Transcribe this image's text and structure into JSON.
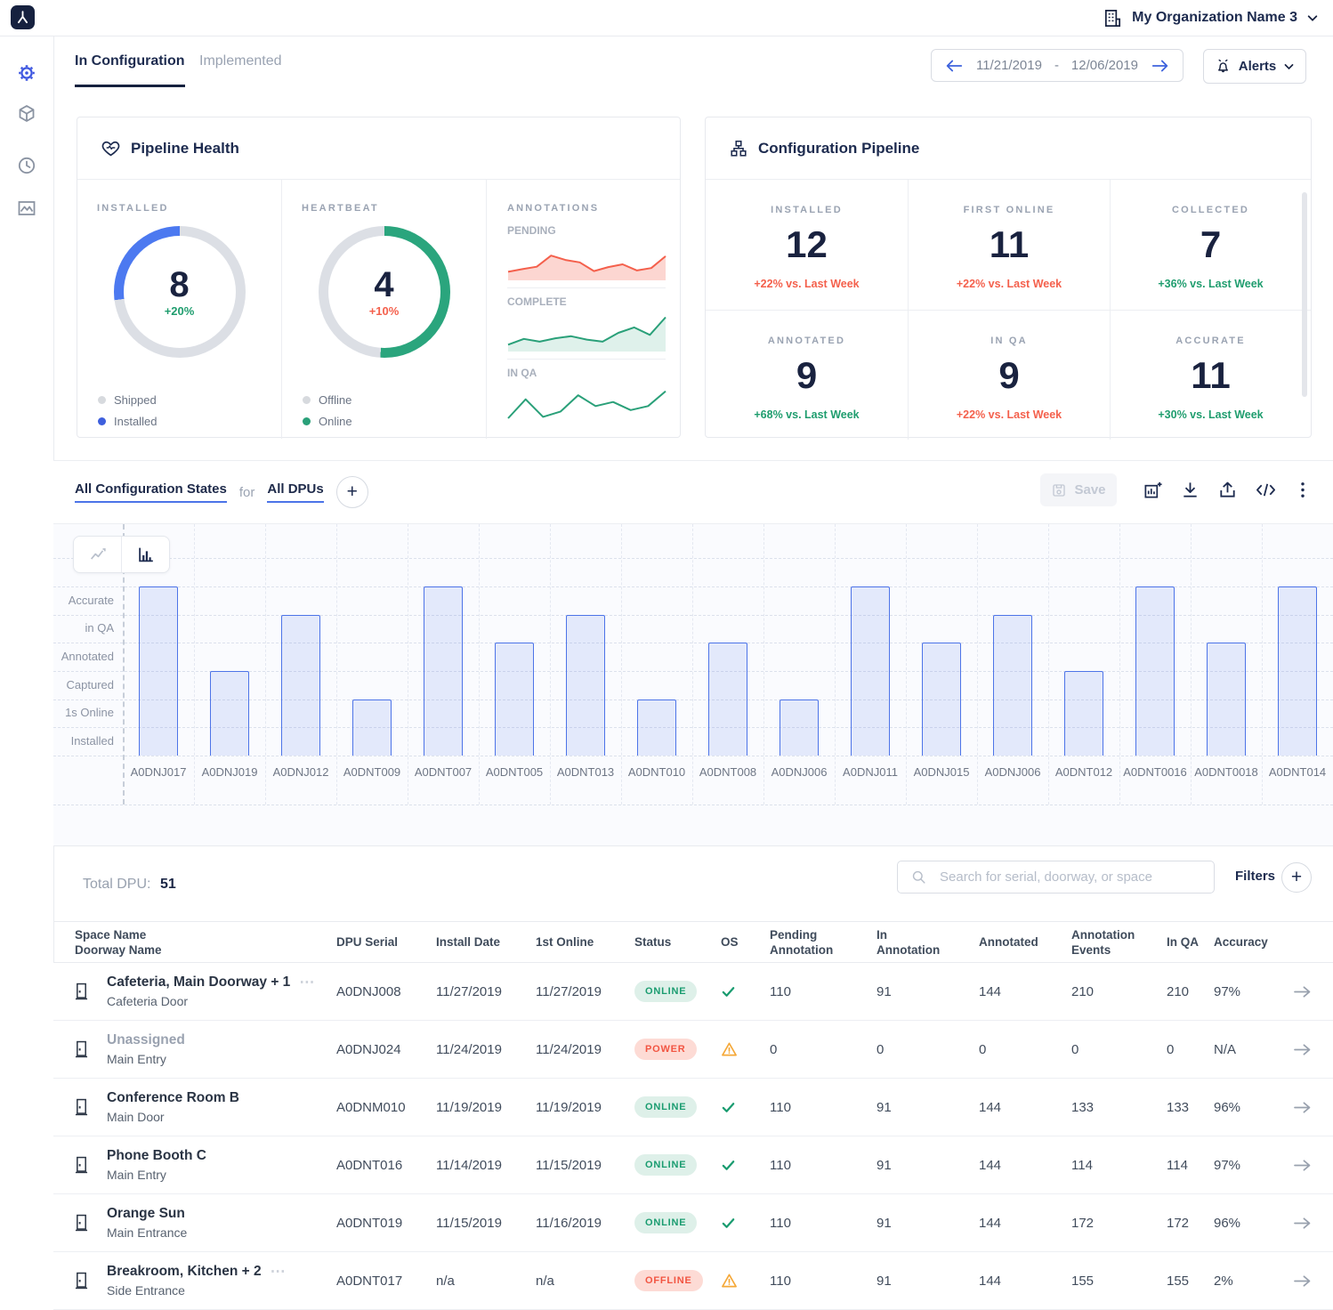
{
  "app": {
    "org_name": "My Organization Name 3"
  },
  "icons": {
    "plus": "+",
    "more": "⋯"
  },
  "tabs": [
    {
      "label": "In Configuration",
      "active": true
    },
    {
      "label": "Implemented",
      "active": false
    }
  ],
  "header": {
    "date_start": "11/21/2019",
    "date_separator": "-",
    "date_end": "12/06/2019",
    "alerts_label": "Alerts"
  },
  "pipeline_health": {
    "title": "Pipeline Health",
    "installed": {
      "label": "INSTALLED",
      "value": "8",
      "delta": "+20%",
      "delta_color": "green",
      "legend": [
        {
          "label": "Shipped",
          "color": "#d7dade"
        },
        {
          "label": "Installed",
          "color": "#3e5fdd"
        }
      ]
    },
    "heartbeat": {
      "label": "HEARTBEAT",
      "value": "4",
      "delta": "+10%",
      "delta_color": "red",
      "legend": [
        {
          "label": "Offline",
          "color": "#d7dade"
        },
        {
          "label": "Online",
          "color": "#2aa079"
        }
      ]
    },
    "annotations": {
      "label": "ANNOTATIONS",
      "series": [
        {
          "label": "PENDING",
          "color": "#f4604c",
          "fill": "rgba(244,96,76,0.26)",
          "values": [
            2,
            2.8,
            3.5,
            6.8,
            5.5,
            4.8,
            2.2,
            3.4,
            4.2,
            2.4,
            3.1,
            6.6
          ]
        },
        {
          "label": "COMPLETE",
          "color": "#2aa079",
          "fill": "rgba(42,160,121,0.15)",
          "values": [
            1.5,
            3.2,
            2.4,
            3.4,
            4.0,
            3.0,
            2.4,
            5.0,
            6.6,
            4.4,
            9.6
          ]
        },
        {
          "label": "IN QA",
          "color": "#2aa079",
          "fill": null,
          "values": [
            0.8,
            6.4,
            1.2,
            2.8,
            7.6,
            4.4,
            5.6,
            3.2,
            4.4,
            8.8
          ]
        }
      ]
    }
  },
  "configuration_pipeline": {
    "title": "Configuration Pipeline",
    "metrics": [
      {
        "label": "INSTALLED",
        "value": "12",
        "delta": "+22% vs. Last Week",
        "color": "red"
      },
      {
        "label": "FIRST ONLINE",
        "value": "11",
        "delta": "+22% vs. Last Week",
        "color": "red"
      },
      {
        "label": "COLLECTED",
        "value": "7",
        "delta": "+36% vs. Last Week",
        "color": "green"
      },
      {
        "label": "ANNOTATED",
        "value": "9",
        "delta": "+68% vs. Last Week",
        "color": "green"
      },
      {
        "label": "IN QA",
        "value": "9",
        "delta": "+22% vs. Last Week",
        "color": "red"
      },
      {
        "label": "ACCURATE",
        "value": "11",
        "delta": "+30% vs. Last Week",
        "color": "green"
      }
    ]
  },
  "chart": {
    "filter_states": "All Configuration States",
    "for_label": "for",
    "filter_dpus": "All DPUs",
    "save_label": "Save",
    "y_labels": [
      "Accurate",
      "in QA",
      "Annotated",
      "Captured",
      "1s Online",
      "Installed"
    ],
    "chart_data": {
      "type": "bar",
      "title": "All Configuration States for All DPUs",
      "categories": [
        "A0DNJ017",
        "A0DNJ019",
        "A0DNJ012",
        "A0DNT009",
        "A0DNT007",
        "A0DNT005",
        "A0DNT013",
        "A0DNT010",
        "A0DNT008",
        "A0DNJ006",
        "A0DNJ011",
        "A0DNJ015",
        "A0DNJ006",
        "A0DNT012",
        "A0DNT0016",
        "A0DNT0018",
        "A0DNT014"
      ],
      "values": [
        6,
        3,
        5,
        2,
        6,
        4,
        5,
        2,
        4,
        2,
        6,
        4,
        5,
        3,
        6,
        4,
        6
      ],
      "y_bands_bottom_to_top": [
        "Installed",
        "1s Online",
        "Captured",
        "Annotated",
        "in QA",
        "Accurate"
      ],
      "ylim": [
        0,
        6
      ],
      "grid": "dashed"
    }
  },
  "table": {
    "total_label": "Total DPU:",
    "total_value": "51",
    "search_placeholder": "Search for serial, doorway, or space",
    "filters_label": "Filters",
    "headers": [
      {
        "l1": "Space Name",
        "l2": "Doorway Name"
      },
      {
        "l1": "DPU Serial",
        "l2": ""
      },
      {
        "l1": "Install Date",
        "l2": ""
      },
      {
        "l1": "1st Online",
        "l2": ""
      },
      {
        "l1": "Status",
        "l2": ""
      },
      {
        "l1": "OS",
        "l2": ""
      },
      {
        "l1": "Pending",
        "l2": "Annotation"
      },
      {
        "l1": "In",
        "l2": "Annotation"
      },
      {
        "l1": "Annotated",
        "l2": ""
      },
      {
        "l1": "Annotation",
        "l2": "Events"
      },
      {
        "l1": "In QA",
        "l2": ""
      },
      {
        "l1": "Accuracy",
        "l2": ""
      }
    ],
    "rows": [
      {
        "space": "Cafeteria, Main Doorway + 1",
        "more": true,
        "muted": false,
        "doorway": "Cafeteria Door",
        "serial": "A0DNJ008",
        "install": "11/27/2019",
        "online": "11/27/2019",
        "status": "ONLINE",
        "status_cls": "online",
        "os": "check",
        "colored": true,
        "pending": "110",
        "in_annotation": "91",
        "annotated": "144",
        "events": "210",
        "in_qa": "210",
        "accuracy": "97%",
        "accuracy_cls": "green"
      },
      {
        "space": "Unassigned",
        "more": false,
        "muted": true,
        "doorway": "Main Entry",
        "serial": "A0DNJ024",
        "install": "11/24/2019",
        "online": "11/24/2019",
        "status": "POWER",
        "status_cls": "power",
        "os": "warning",
        "colored": false,
        "pending": "0",
        "in_annotation": "0",
        "annotated": "0",
        "events": "0",
        "in_qa": "0",
        "accuracy": "N/A",
        "accuracy_cls": "plain"
      },
      {
        "space": "Conference Room B",
        "more": false,
        "muted": false,
        "doorway": "Main Door",
        "serial": "A0DNM010",
        "install": "11/19/2019",
        "online": "11/19/2019",
        "status": "ONLINE",
        "status_cls": "online",
        "os": "check",
        "colored": true,
        "pending": "110",
        "in_annotation": "91",
        "annotated": "144",
        "events": "133",
        "in_qa": "133",
        "accuracy": "96%",
        "accuracy_cls": "green"
      },
      {
        "space": "Phone Booth C",
        "more": false,
        "muted": false,
        "doorway": "Main Entry",
        "serial": "A0DNT016",
        "install": "11/14/2019",
        "online": "11/15/2019",
        "status": "ONLINE",
        "status_cls": "online",
        "os": "check",
        "colored": true,
        "pending": "110",
        "in_annotation": "91",
        "annotated": "144",
        "events": "114",
        "in_qa": "114",
        "accuracy": "97%",
        "accuracy_cls": "green"
      },
      {
        "space": "Orange Sun",
        "more": false,
        "muted": false,
        "doorway": "Main Entrance",
        "serial": "A0DNT019",
        "install": "11/15/2019",
        "online": "11/16/2019",
        "status": "ONLINE",
        "status_cls": "online",
        "os": "check",
        "colored": true,
        "pending": "110",
        "in_annotation": "91",
        "annotated": "144",
        "events": "172",
        "in_qa": "172",
        "accuracy": "96%",
        "accuracy_cls": "green"
      },
      {
        "space": "Breakroom, Kitchen + 2",
        "more": true,
        "muted": false,
        "doorway": "Side Entrance",
        "serial": "A0DNT017",
        "install": "n/a",
        "online": "n/a",
        "status": "OFFLINE",
        "status_cls": "offline",
        "os": "warning",
        "colored": true,
        "pending": "110",
        "in_annotation": "91",
        "annotated": "144",
        "events": "155",
        "in_qa": "155",
        "accuracy": "2%",
        "accuracy_cls": "red"
      }
    ]
  }
}
